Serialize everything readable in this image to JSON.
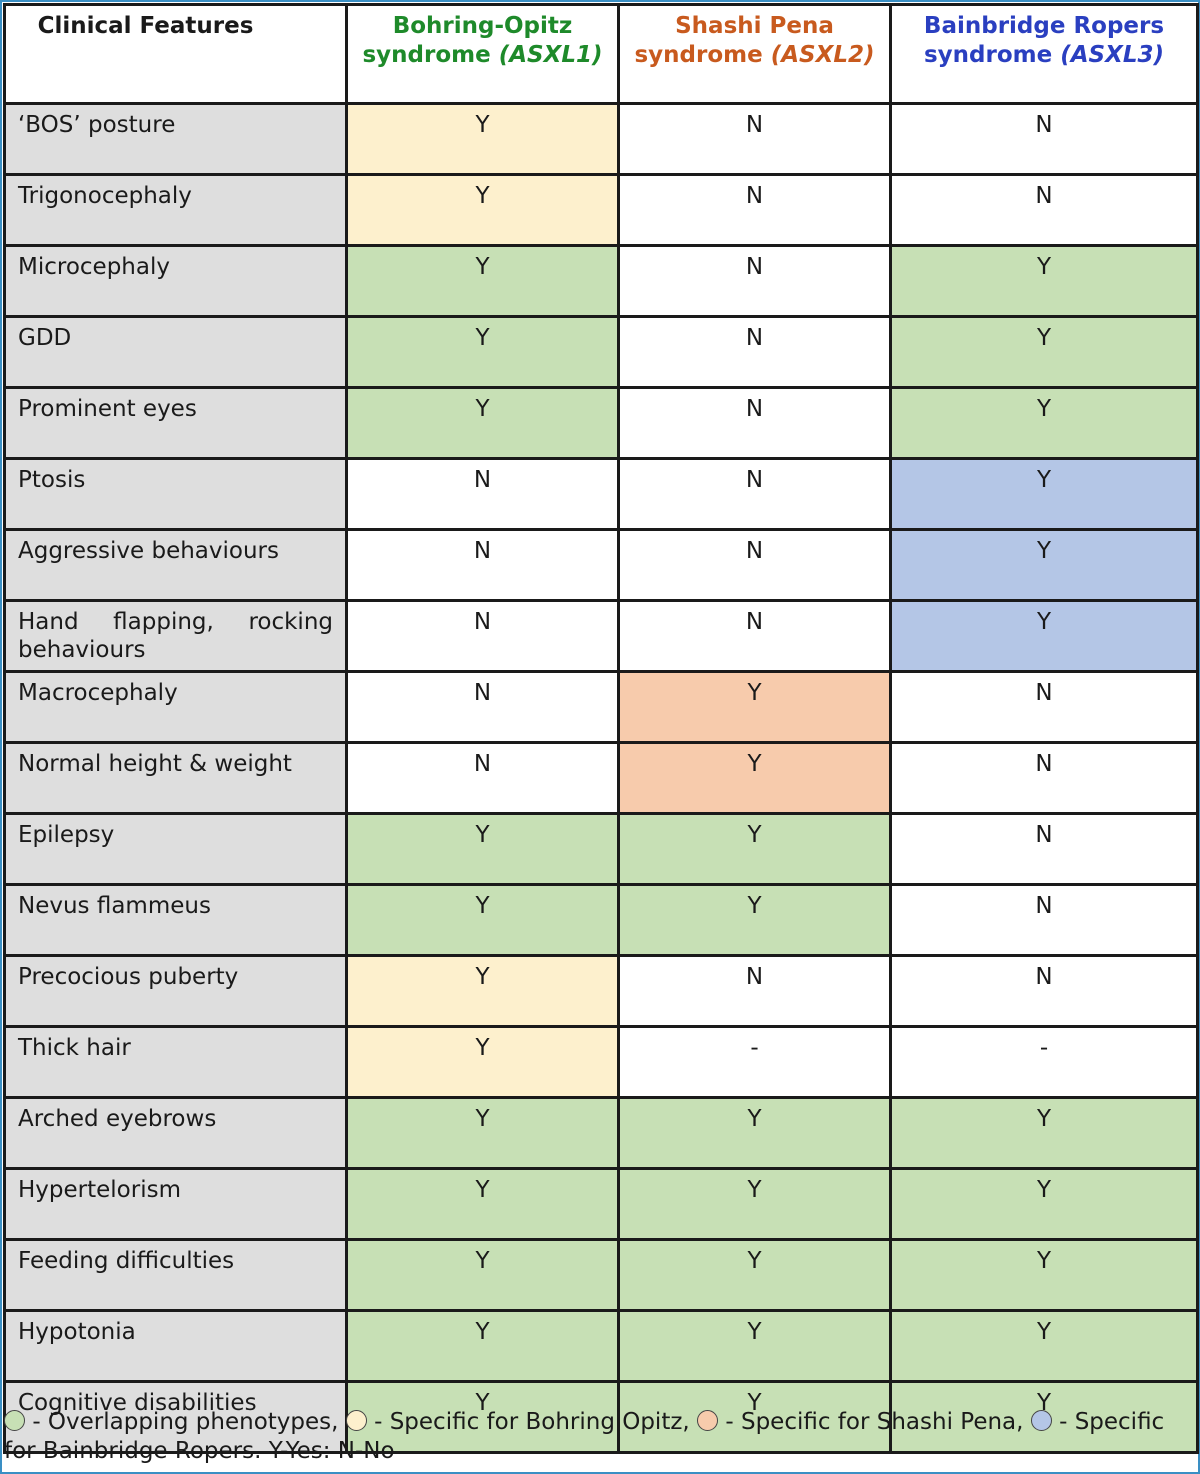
{
  "header": {
    "features": "Clinical Features",
    "col1_name": "Bohring-Opitz",
    "col1_suffix": "syndrome",
    "col1_gene": "(ASXL1)",
    "col2_name": "Shashi Pena",
    "col2_suffix": "syndrome",
    "col2_gene": "(ASXL2)",
    "col3_name": "Bainbridge Ropers",
    "col3_suffix": "syndrome",
    "col3_gene": "(ASXL3)"
  },
  "rows": [
    {
      "feature": "‘BOS’ posture",
      "v": [
        "Y",
        "N",
        "N"
      ],
      "c": [
        "bos",
        "none",
        "none"
      ]
    },
    {
      "feature": "Trigonocephaly",
      "v": [
        "Y",
        "N",
        "N"
      ],
      "c": [
        "bos",
        "none",
        "none"
      ]
    },
    {
      "feature": "Microcephaly",
      "v": [
        "Y",
        "N",
        "Y"
      ],
      "c": [
        "overlap",
        "none",
        "overlap"
      ]
    },
    {
      "feature": "GDD",
      "v": [
        "Y",
        "N",
        "Y"
      ],
      "c": [
        "overlap",
        "none",
        "overlap"
      ]
    },
    {
      "feature": "Prominent eyes",
      "v": [
        "Y",
        "N",
        "Y"
      ],
      "c": [
        "overlap",
        "none",
        "overlap"
      ]
    },
    {
      "feature": "Ptosis",
      "v": [
        "N",
        "N",
        "Y"
      ],
      "c": [
        "none",
        "none",
        "br"
      ]
    },
    {
      "feature": "Aggressive behaviours",
      "v": [
        "N",
        "N",
        "Y"
      ],
      "c": [
        "none",
        "none",
        "br"
      ]
    },
    {
      "feature": "Hand flapping, rocking behaviours",
      "v": [
        "N",
        "N",
        "Y"
      ],
      "c": [
        "none",
        "none",
        "br"
      ]
    },
    {
      "feature": "Macrocephaly",
      "v": [
        "N",
        "Y",
        "N"
      ],
      "c": [
        "none",
        "sp",
        "none"
      ]
    },
    {
      "feature": "Normal height & weight",
      "v": [
        "N",
        "Y",
        "N"
      ],
      "c": [
        "none",
        "sp",
        "none"
      ]
    },
    {
      "feature": "Epilepsy",
      "v": [
        "Y",
        "Y",
        "N"
      ],
      "c": [
        "overlap",
        "overlap",
        "none"
      ]
    },
    {
      "feature": "Nevus flammeus",
      "v": [
        "Y",
        "Y",
        "N"
      ],
      "c": [
        "overlap",
        "overlap",
        "none"
      ]
    },
    {
      "feature": "Precocious puberty",
      "v": [
        "Y",
        "N",
        "N"
      ],
      "c": [
        "bos",
        "none",
        "none"
      ]
    },
    {
      "feature": "Thick hair",
      "v": [
        "Y",
        "-",
        "-"
      ],
      "c": [
        "bos",
        "none",
        "none"
      ]
    },
    {
      "feature": "Arched eyebrows",
      "v": [
        "Y",
        "Y",
        "Y"
      ],
      "c": [
        "overlap",
        "overlap",
        "overlap"
      ]
    },
    {
      "feature": "Hypertelorism",
      "v": [
        "Y",
        "Y",
        "Y"
      ],
      "c": [
        "overlap",
        "overlap",
        "overlap"
      ]
    },
    {
      "feature": "Feeding difficulties",
      "v": [
        "Y",
        "Y",
        "Y"
      ],
      "c": [
        "overlap",
        "overlap",
        "overlap"
      ]
    },
    {
      "feature": "Hypotonia",
      "v": [
        "Y",
        "Y",
        "Y"
      ],
      "c": [
        "overlap",
        "overlap",
        "overlap"
      ]
    },
    {
      "feature": "Cognitive disabilities",
      "v": [
        "Y",
        "Y",
        "Y"
      ],
      "c": [
        "overlap",
        "overlap",
        "overlap"
      ]
    }
  ],
  "legend": {
    "overlap": "- Overlapping phenotypes,",
    "bos": "- Specific for Bohring Opitz,",
    "sp": "- Specific for Shashi Pena,",
    "br": "- Specific for Bainbridge Ropers. Y-Yes: N-No"
  },
  "colors": {
    "overlap": "#c7e0b5",
    "bos": "#fdf0cd",
    "sp": "#f7cbac",
    "br": "#b4c6e6",
    "feature_col": "#dedede",
    "col1_header": "#1e8a2a",
    "col2_header": "#c85a1e",
    "col3_header": "#2a3fc0",
    "frame": "#3a8fc4"
  }
}
